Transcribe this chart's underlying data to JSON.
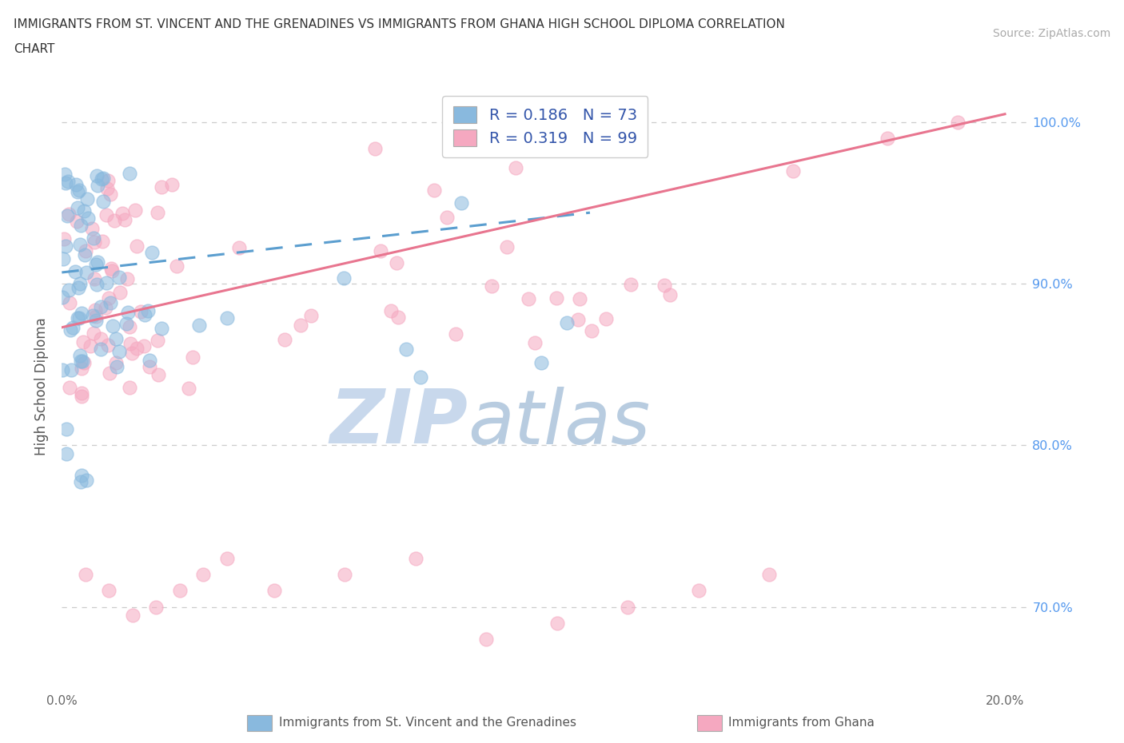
{
  "title_line1": "IMMIGRANTS FROM ST. VINCENT AND THE GRENADINES VS IMMIGRANTS FROM GHANA HIGH SCHOOL DIPLOMA CORRELATION",
  "title_line2": "CHART",
  "source": "Source: ZipAtlas.com",
  "ylabel": "High School Diploma",
  "xmin": 0.0,
  "xmax": 0.205,
  "ymin": 0.648,
  "ymax": 1.025,
  "xtick_positions": [
    0.0,
    0.04,
    0.08,
    0.12,
    0.16,
    0.2
  ],
  "xtick_labels": [
    "0.0%",
    "",
    "",
    "",
    "",
    "20.0%"
  ],
  "ytick_positions": [
    0.7,
    0.8,
    0.9,
    1.0
  ],
  "ytick_labels": [
    "70.0%",
    "80.0%",
    "90.0%",
    "100.0%"
  ],
  "blue_R": 0.186,
  "blue_N": 73,
  "pink_R": 0.319,
  "pink_N": 99,
  "blue_color": "#89b9de",
  "pink_color": "#f5a8c0",
  "blue_line_color": "#5b9ecf",
  "pink_line_color": "#e8758f",
  "watermark_zip": "ZIP",
  "watermark_atlas": "atlas",
  "watermark_color_zip": "#c8d8ec",
  "watermark_color_atlas": "#b8cce0",
  "background_color": "#ffffff",
  "grid_color": "#cccccc",
  "blue_line_x0": 0.0,
  "blue_line_y0": 0.907,
  "blue_line_x1": 0.112,
  "blue_line_y1": 0.944,
  "pink_line_x0": 0.0,
  "pink_line_y0": 0.873,
  "pink_line_x1": 0.2,
  "pink_line_y1": 1.005
}
